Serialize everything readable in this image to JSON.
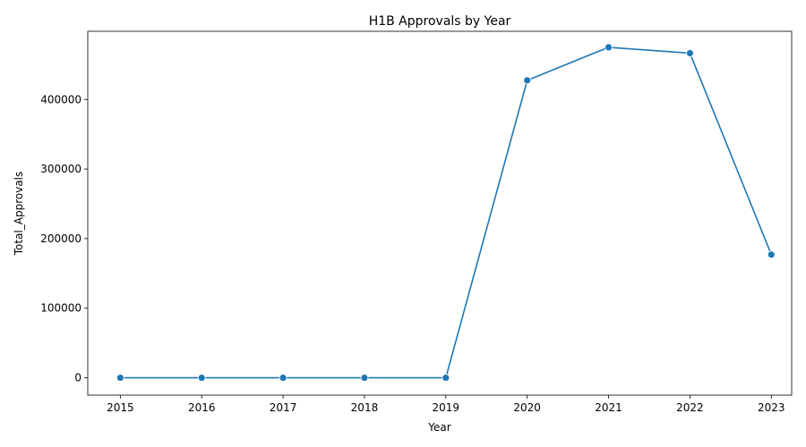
{
  "chart_data": {
    "type": "line",
    "title": "H1B Approvals by Year",
    "xlabel": "Year",
    "ylabel": "Total_Approvals",
    "x": [
      2015,
      2016,
      2017,
      2018,
      2019,
      2020,
      2021,
      2022,
      2023
    ],
    "series": [
      {
        "values": [
          0,
          0,
          0,
          0,
          0,
          427500,
          475000,
          466500,
          177000
        ]
      }
    ],
    "xlim": [
      2014.6,
      2023.25
    ],
    "ylim": [
      -25000,
      498000
    ],
    "xticks": [
      "2015",
      "2016",
      "2017",
      "2018",
      "2019",
      "2020",
      "2021",
      "2022",
      "2023"
    ],
    "yticks": [
      "0",
      "100000",
      "200000",
      "300000",
      "400000"
    ],
    "grid": false,
    "legend": "none",
    "colors": {
      "line": "#1f77b4",
      "marker": "#1f77b4",
      "marker_edge": "#ffffff",
      "axes": "#000000"
    }
  }
}
